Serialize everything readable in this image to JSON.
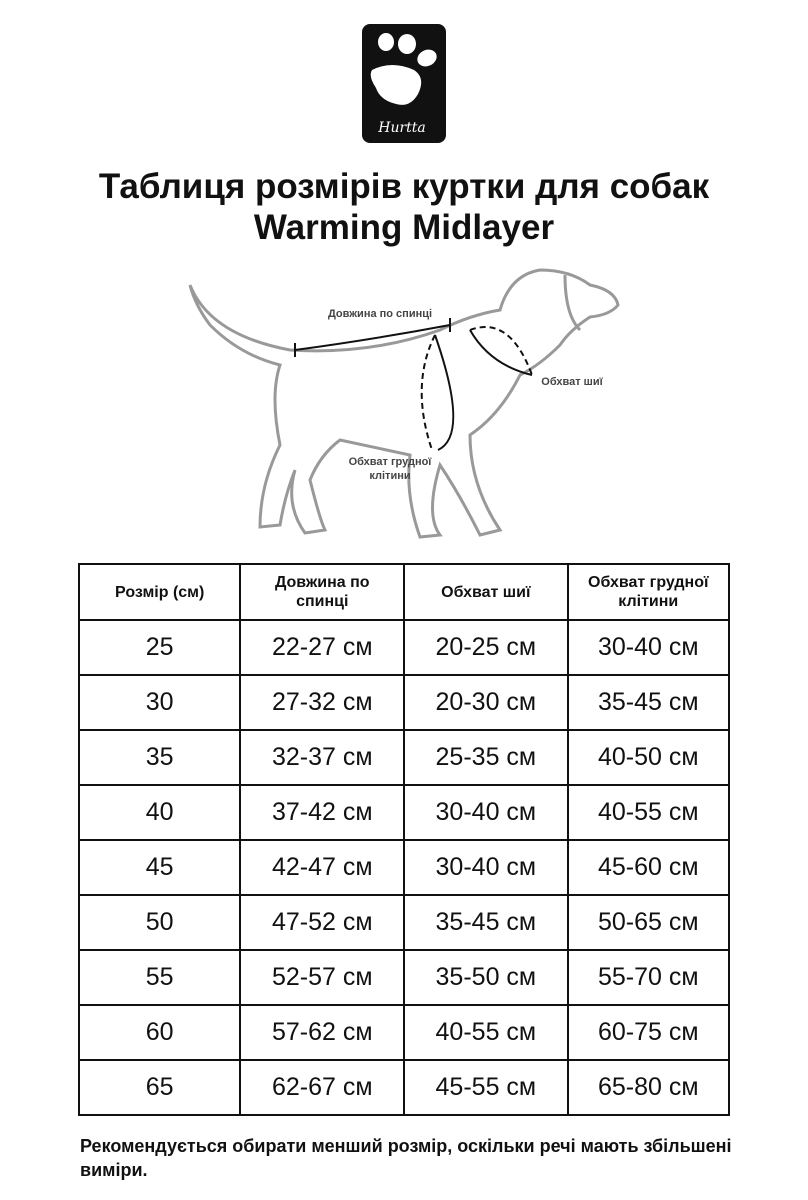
{
  "logo": {
    "text": "Hurtta",
    "icon": "paw-icon",
    "background": "#111111"
  },
  "title": {
    "line1": "Таблиця розмірів куртки для собак",
    "line2": "Warming Midlayer"
  },
  "diagram": {
    "back_length_label": "Довжина по спинці",
    "neck_label": "Обхват шиї",
    "chest_label_line1": "Обхват грудної",
    "chest_label_line2": "клітини"
  },
  "table": {
    "headers": [
      "Розмір (см)",
      "Довжина по спинці",
      "Обхват шиї",
      "Обхват грудної клітини"
    ],
    "rows": [
      [
        "25",
        "22-27 см",
        "20-25 см",
        "30-40 см"
      ],
      [
        "30",
        "27-32 см",
        "20-30 см",
        "35-45 см"
      ],
      [
        "35",
        "32-37 см",
        "25-35 см",
        "40-50 см"
      ],
      [
        "40",
        "37-42 см",
        "30-40 см",
        "40-55 см"
      ],
      [
        "45",
        "42-47 см",
        "30-40 см",
        "45-60 см"
      ],
      [
        "50",
        "47-52 см",
        "35-45 см",
        "50-65 см"
      ],
      [
        "55",
        "52-57 см",
        "35-50 см",
        "55-70 см"
      ],
      [
        "60",
        "57-62 см",
        "40-55 см",
        "60-75 см"
      ],
      [
        "65",
        "62-67 см",
        "45-55 см",
        "65-80 см"
      ]
    ]
  },
  "note": "Рекомендується обирати менший розмір, оскільки речі мають збільшені виміри."
}
